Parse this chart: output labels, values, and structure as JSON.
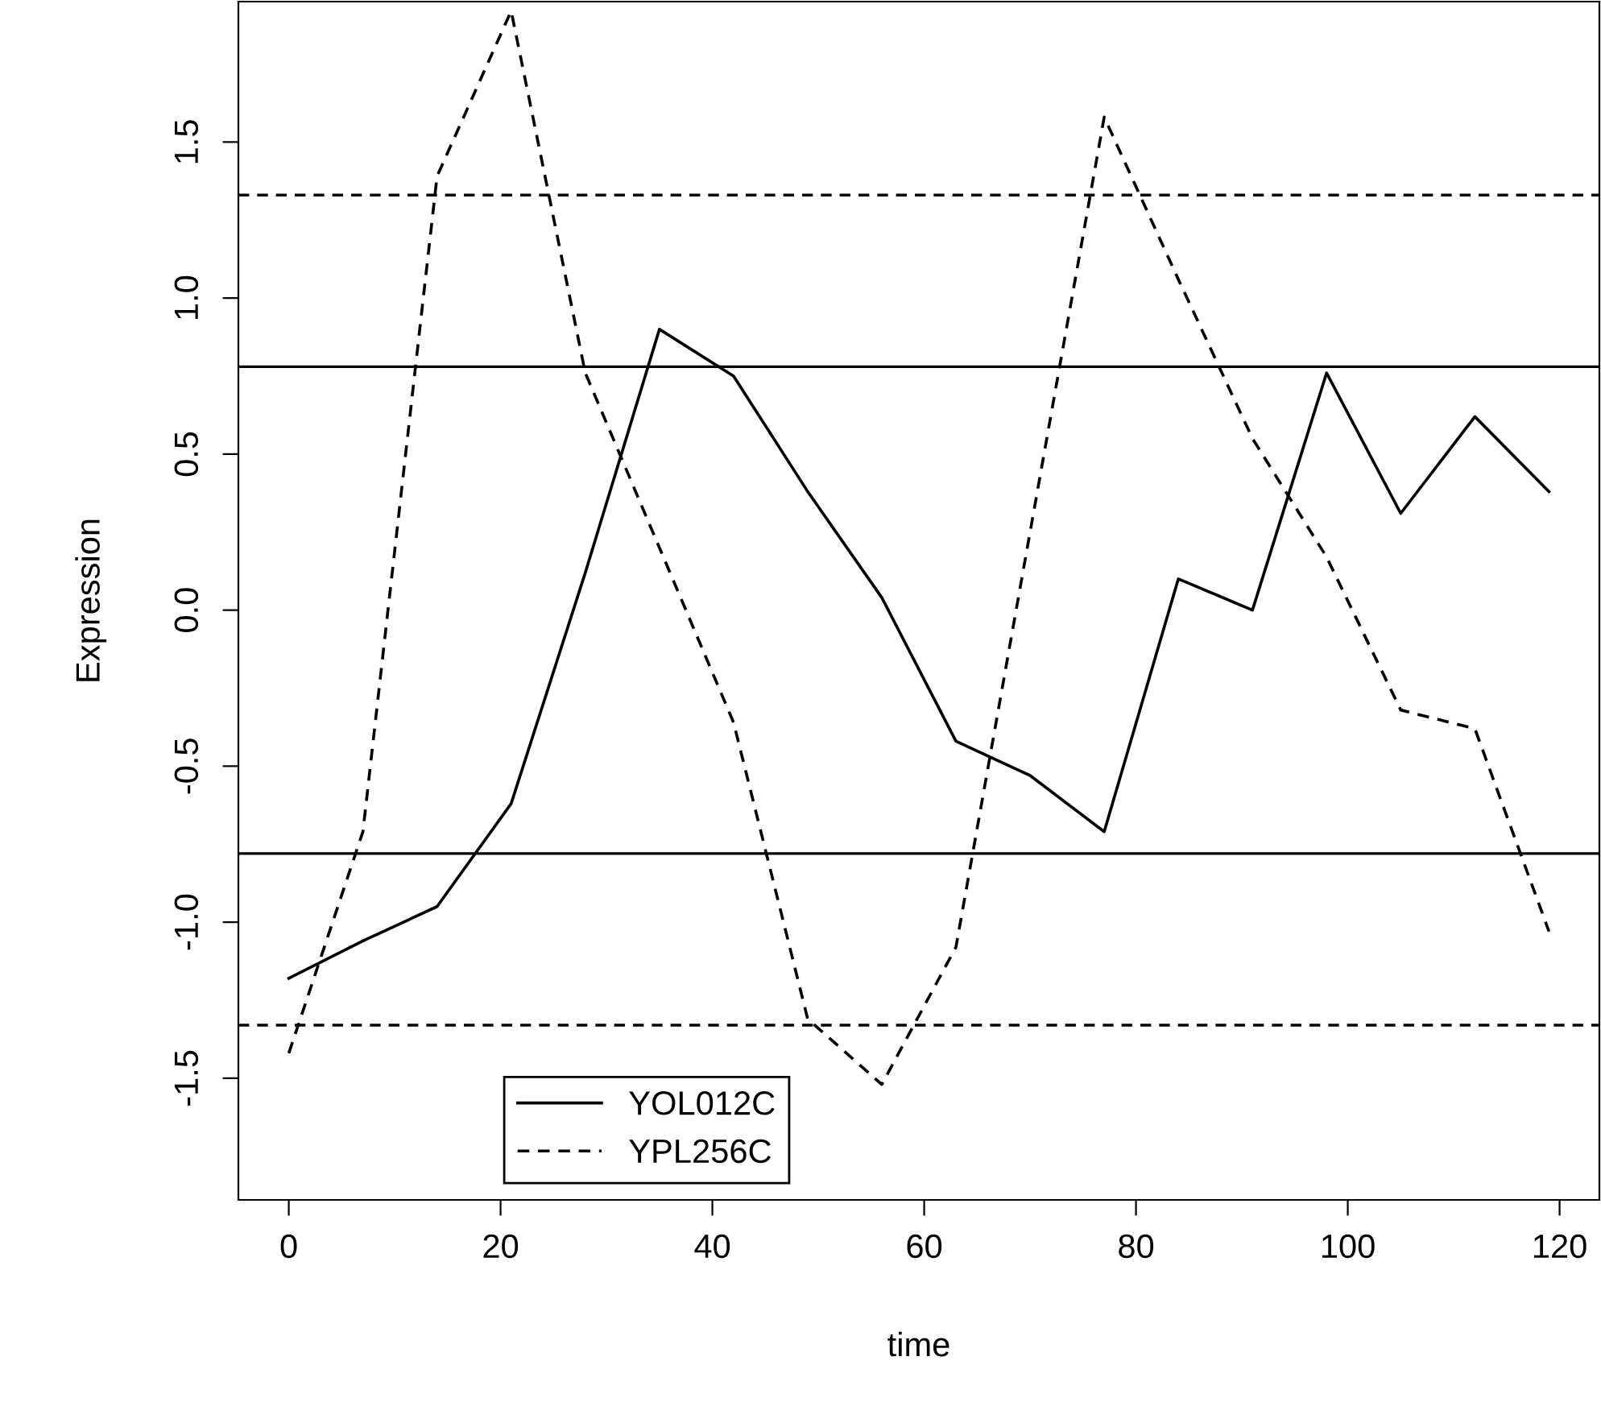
{
  "chart_data": {
    "type": "line",
    "xlabel": "time",
    "ylabel": "Expression",
    "x": [
      0,
      7,
      14,
      21,
      28,
      35,
      42,
      49,
      56,
      63,
      70,
      77,
      84,
      91,
      98,
      105,
      112,
      119
    ],
    "series": [
      {
        "name": "YOL012C",
        "color": "#000000",
        "line_style": "solid",
        "values": [
          -1.18,
          -1.06,
          -0.95,
          -0.62,
          0.12,
          0.9,
          0.75,
          0.38,
          0.04,
          -0.42,
          -0.53,
          -0.71,
          0.1,
          0.0,
          0.76,
          0.31,
          0.62,
          0.38
        ]
      },
      {
        "name": "YPL256C",
        "color": "#000000",
        "line_style": "dashed",
        "values": [
          -1.42,
          -0.71,
          1.39,
          1.92,
          0.76,
          0.2,
          -0.36,
          -1.31,
          -1.52,
          -1.08,
          0.25,
          1.58,
          1.06,
          0.55,
          0.17,
          -0.32,
          -0.38,
          -1.03
        ]
      }
    ],
    "ref_lines": [
      {
        "axis": "y",
        "value": 1.33,
        "color": "#000000",
        "line_style": "dashed"
      },
      {
        "axis": "y",
        "value": -1.33,
        "color": "#000000",
        "line_style": "dashed"
      },
      {
        "axis": "y",
        "value": 0.78,
        "color": "#000000",
        "line_style": "solid"
      },
      {
        "axis": "y",
        "value": -0.78,
        "color": "#000000",
        "line_style": "solid"
      }
    ],
    "xlim": [
      -4.76,
      123.76
    ],
    "ylim": [
      -1.89,
      1.95
    ],
    "xticks": [
      0,
      20,
      40,
      60,
      80,
      100,
      120
    ],
    "yticks": [
      -1.5,
      {
        "value": -1,
        "label": "-1.0"
      },
      -0.5,
      {
        "value": 0,
        "label": "0.0"
      },
      0.5,
      {
        "value": 1,
        "label": "1.0"
      },
      1.5
    ],
    "legend": "bottom",
    "grid": false,
    "marker": "none"
  }
}
